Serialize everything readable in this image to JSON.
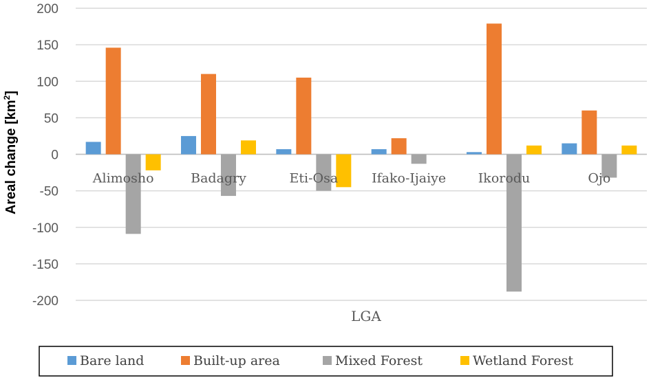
{
  "chart_data": {
    "type": "bar",
    "categories": [
      "Alimosho",
      "Badagry",
      "Eti-Osa",
      "Ifako-Ijaiye",
      "Ikorodu",
      "Ojo"
    ],
    "series": [
      {
        "name": "Bare land",
        "color": "#5B9BD5",
        "values": [
          17,
          25,
          7,
          7,
          3,
          15
        ]
      },
      {
        "name": "Built-up area",
        "color": "#ED7D31",
        "values": [
          146,
          110,
          105,
          22,
          179,
          60
        ]
      },
      {
        "name": "Mixed Forest",
        "color": "#A5A5A5",
        "values": [
          -109,
          -57,
          -50,
          -13,
          -188,
          -32
        ]
      },
      {
        "name": "Wetland Forest",
        "color": "#FFC000",
        "values": [
          -22,
          19,
          -45,
          0,
          12,
          12
        ]
      }
    ],
    "xlabel": "LGA",
    "ylabel": "Areal change [km",
    "ylabel_sup": "2",
    "ylabel_end": "]",
    "ylim": [
      -200,
      200
    ],
    "yticks": [
      200,
      150,
      100,
      50,
      0,
      -50,
      -100,
      -150,
      -200
    ],
    "grid": true,
    "legend_position": "bottom"
  }
}
